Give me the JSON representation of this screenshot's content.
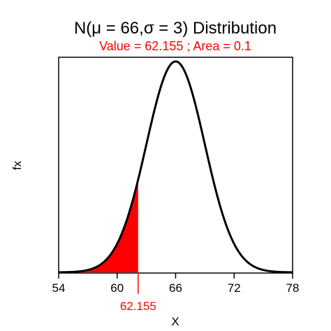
{
  "chart_data": {
    "type": "area",
    "title": "N(μ = 66,σ = 3) Distribution",
    "subtitle": "Value = 62.155 ; Area =   0.1",
    "xlabel": "X",
    "ylabel": "fx",
    "distribution": {
      "family": "normal",
      "mean": 66,
      "sd": 3
    },
    "xlim": [
      54,
      78
    ],
    "x_ticks": [
      54,
      60,
      66,
      72,
      78
    ],
    "x_tick_labels": [
      "54",
      "60",
      "66",
      "72",
      "78"
    ],
    "value": 62.155,
    "value_label": "62.155",
    "area": 0.1,
    "shaded_region": "left tail, x ≤ 62.155",
    "colors": {
      "curve": "#000000",
      "shade": "#ff0000",
      "accent": "#ff0000"
    },
    "grid": false,
    "legend": "none"
  }
}
